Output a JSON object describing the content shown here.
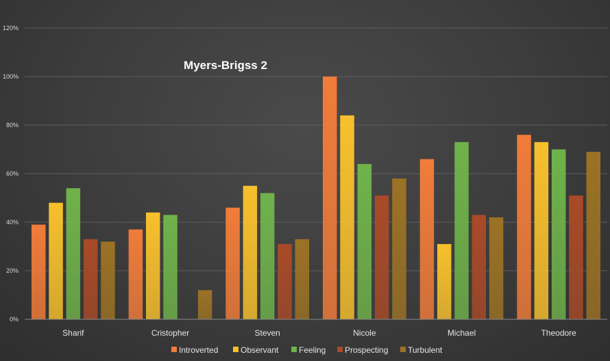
{
  "chart_data": {
    "type": "bar",
    "title": "Myers-Brigss 2",
    "categories": [
      "Sharif",
      "Cristopher",
      "Steven",
      "Nicole",
      "Michael",
      "Theodore"
    ],
    "series": [
      {
        "name": "Introverted",
        "color": "#f07c3a",
        "values": [
          39,
          37,
          46,
          100,
          66,
          76
        ]
      },
      {
        "name": "Observant",
        "color": "#f7c02c",
        "values": [
          48,
          44,
          55,
          84,
          31,
          73
        ]
      },
      {
        "name": "Feeling",
        "color": "#6fb24a",
        "values": [
          54,
          43,
          52,
          64,
          73,
          70
        ]
      },
      {
        "name": "Prospecting",
        "color": "#a84a28",
        "values": [
          33,
          0,
          31,
          51,
          43,
          51
        ]
      },
      {
        "name": "Turbulent",
        "color": "#9b7225",
        "values": [
          32,
          12,
          33,
          58,
          42,
          69
        ]
      }
    ],
    "ylim": [
      0,
      120
    ],
    "yticks": [
      "0%",
      "20%",
      "40%",
      "60%",
      "80%",
      "100%",
      "120%"
    ],
    "grid": true,
    "legend": "bottom"
  }
}
